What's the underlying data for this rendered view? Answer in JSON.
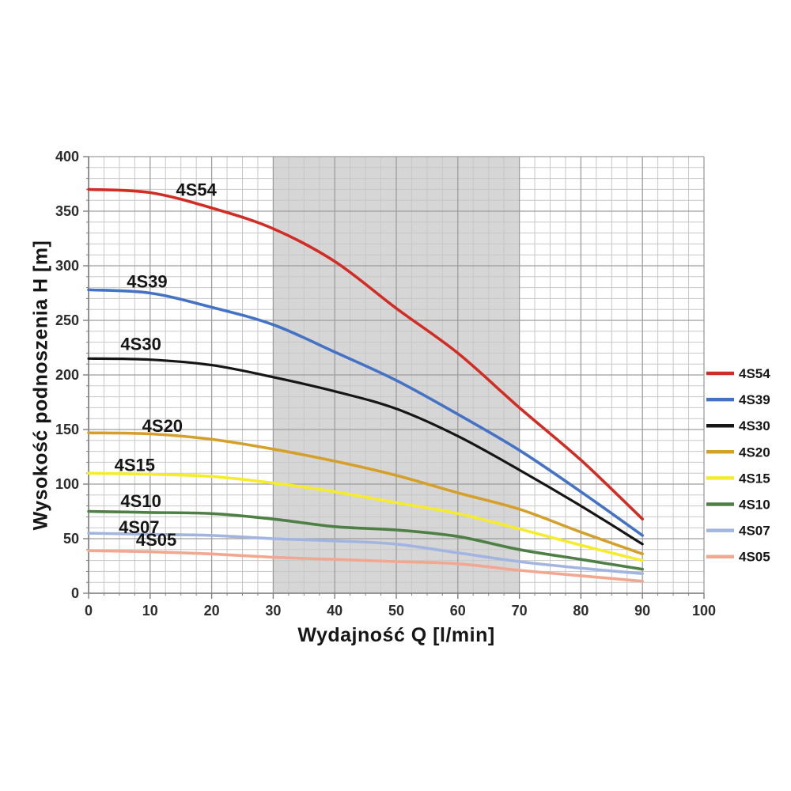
{
  "chart_data": {
    "type": "line",
    "title": "",
    "xlabel": "Wydajność Q [l/min]",
    "ylabel": "Wysokość podnoszenia H [m]",
    "xlim": [
      0,
      100
    ],
    "ylim": [
      0,
      400
    ],
    "x_major_ticks": [
      0,
      10,
      20,
      30,
      40,
      50,
      60,
      70,
      80,
      90,
      100
    ],
    "y_major_ticks": [
      0,
      50,
      100,
      150,
      200,
      250,
      300,
      350,
      400
    ],
    "x_minor_step": 2.5,
    "y_minor_step": 10,
    "grid": "on",
    "legend_position": "right",
    "duty_band": {
      "x_start": 30,
      "x_end": 70,
      "color": "#d6d6d6"
    },
    "colors": {
      "minor_grid": "#c7c7c7",
      "major_grid": "#9d9d9d",
      "axis": "#7f7f7f",
      "tick_text": "#2d2d2d",
      "label_text": "#161616"
    },
    "x": [
      0,
      10,
      20,
      30,
      40,
      50,
      60,
      70,
      80,
      90
    ],
    "series": [
      {
        "name": "4S54",
        "color": "#d12d25",
        "values": [
          370,
          367,
          353,
          334,
          304,
          261,
          220,
          170,
          122,
          68
        ],
        "label_q": 17.5,
        "label_h": 364
      },
      {
        "name": "4S39",
        "color": "#4472c4",
        "values": [
          278,
          275,
          262,
          246,
          221,
          195,
          164,
          131,
          93,
          53
        ],
        "label_q": 9.5,
        "label_h": 280
      },
      {
        "name": "4S30",
        "color": "#161616",
        "values": [
          215,
          214,
          209,
          198,
          185,
          169,
          144,
          113,
          80,
          45
        ],
        "label_q": 8.5,
        "label_h": 223
      },
      {
        "name": "4S20",
        "color": "#d5a02a",
        "values": [
          147,
          146,
          141,
          132,
          121,
          108,
          92,
          77,
          56,
          36
        ],
        "label_q": 12,
        "label_h": 148
      },
      {
        "name": "4S15",
        "color": "#f5ec2e",
        "values": [
          110,
          109,
          107,
          101,
          93,
          83,
          73,
          59,
          44,
          30
        ],
        "label_q": 7.5,
        "label_h": 112
      },
      {
        "name": "4S10",
        "color": "#4e8045",
        "values": [
          75,
          74,
          73,
          68,
          61,
          58,
          52,
          40,
          31,
          22
        ],
        "label_q": 8.5,
        "label_h": 79
      },
      {
        "name": "4S07",
        "color": "#a2b5e0",
        "values": [
          55,
          54,
          53,
          50,
          48,
          45,
          37,
          29,
          23,
          18
        ],
        "label_q": 8.2,
        "label_h": 55
      },
      {
        "name": "4S05",
        "color": "#f2a890",
        "values": [
          39,
          38,
          36,
          33,
          31,
          29,
          27,
          21,
          16,
          11
        ],
        "label_q": 11,
        "label_h": 43.5
      }
    ],
    "legend_items": [
      "4S54",
      "4S39",
      "4S30",
      "4S20",
      "4S15",
      "4S10",
      "4S07",
      "4S05"
    ]
  }
}
